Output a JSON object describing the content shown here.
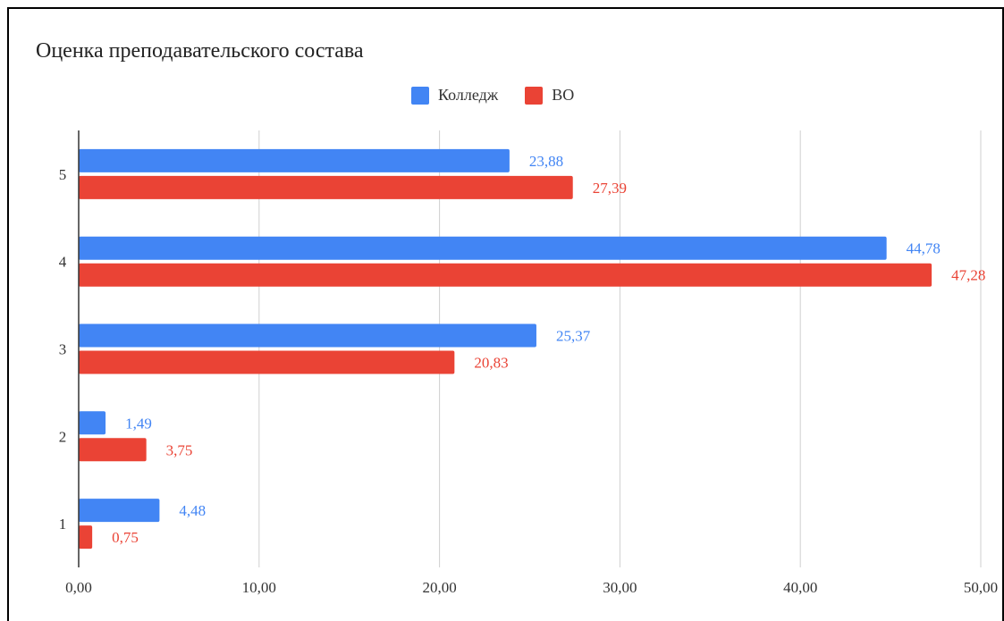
{
  "chart_data": {
    "type": "bar",
    "orientation": "horizontal",
    "title": "Оценка преподавательского состава",
    "categories": [
      "1",
      "2",
      "3",
      "4",
      "5"
    ],
    "series": [
      {
        "name": "Колледж",
        "color": "#4285F4",
        "values": [
          4.48,
          1.49,
          25.37,
          44.78,
          23.88
        ],
        "labels": [
          "4,48",
          "1,49",
          "25,37",
          "44,78",
          "23,88"
        ]
      },
      {
        "name": "ВО",
        "color": "#EA4335",
        "values": [
          0.75,
          3.75,
          20.83,
          47.28,
          27.39
        ],
        "labels": [
          "0,75",
          "3,75",
          "20,83",
          "47,28",
          "27,39"
        ]
      }
    ],
    "xlim": [
      0,
      50
    ],
    "x_ticks": [
      0,
      10,
      20,
      30,
      40,
      50
    ],
    "x_tick_labels": [
      "0,00",
      "10,00",
      "20,00",
      "30,00",
      "40,00",
      "50,00"
    ],
    "grid": true,
    "legend_position": "top-center"
  }
}
